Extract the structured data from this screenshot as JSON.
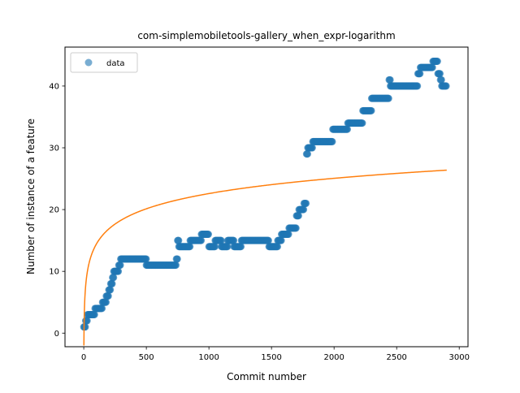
{
  "chart_data": {
    "type": "scatter",
    "title": "com-simplemobiletools-gallery_when_expr-logarithm",
    "xlabel": "Commit number",
    "ylabel": "Number of instance of a feature",
    "xlim": [
      -150,
      3070
    ],
    "ylim": [
      -2.2,
      46.3
    ],
    "xticks": [
      0,
      500,
      1000,
      1500,
      2000,
      2500,
      3000
    ],
    "yticks": [
      0,
      10,
      20,
      30,
      40
    ],
    "legend": {
      "placement": "top-left",
      "entries": [
        "data"
      ]
    },
    "colors": {
      "data": "#1f77b4",
      "fit": "#ff7f0e"
    },
    "series": [
      {
        "name": "data",
        "kind": "scatter",
        "steps": [
          [
            0,
            1
          ],
          [
            15,
            2
          ],
          [
            30,
            3
          ],
          [
            90,
            4
          ],
          [
            150,
            5
          ],
          [
            180,
            6
          ],
          [
            200,
            7
          ],
          [
            215,
            8
          ],
          [
            230,
            9
          ],
          [
            240,
            10
          ],
          [
            280,
            11
          ],
          [
            295,
            12
          ],
          [
            500,
            11
          ],
          [
            740,
            12
          ],
          [
            750,
            15
          ],
          [
            760,
            14
          ],
          [
            850,
            15
          ],
          [
            940,
            16
          ],
          [
            1000,
            14
          ],
          [
            1050,
            15
          ],
          [
            1100,
            14
          ],
          [
            1150,
            15
          ],
          [
            1200,
            14
          ],
          [
            1260,
            15
          ],
          [
            1480,
            14
          ],
          [
            1550,
            15
          ],
          [
            1580,
            16
          ],
          [
            1640,
            17
          ],
          [
            1700,
            19
          ],
          [
            1720,
            20
          ],
          [
            1760,
            21
          ],
          [
            1780,
            29
          ],
          [
            1790,
            30
          ],
          [
            1830,
            31
          ],
          [
            1990,
            33
          ],
          [
            2110,
            34
          ],
          [
            2230,
            36
          ],
          [
            2300,
            38
          ],
          [
            2440,
            41
          ],
          [
            2450,
            40
          ],
          [
            2670,
            42
          ],
          [
            2690,
            43
          ],
          [
            2790,
            44
          ],
          [
            2830,
            42
          ],
          [
            2850,
            41
          ],
          [
            2860,
            40
          ]
        ],
        "end": 2900
      },
      {
        "name": "",
        "kind": "line",
        "formula": "y = a + b * ln(x)",
        "a": -2.0,
        "b": 3.56,
        "x_range": [
          1,
          2900
        ]
      }
    ]
  }
}
